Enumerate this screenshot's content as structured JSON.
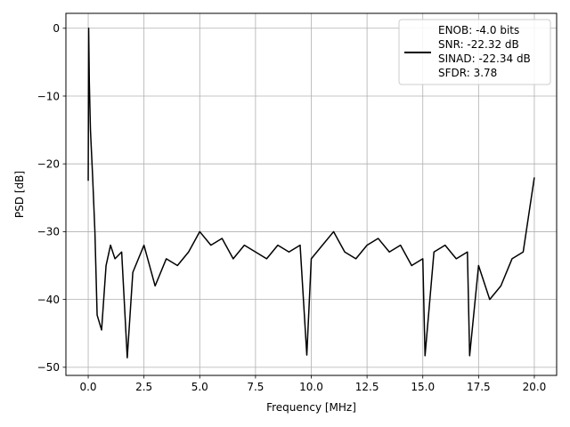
{
  "chart_data": {
    "type": "line",
    "title": "",
    "xlabel": "Frequency [MHz]",
    "ylabel": "PSD [dB]",
    "xlim": [
      -1.0,
      21.0
    ],
    "ylim": [
      -51.2,
      2.2
    ],
    "x_ticks": [
      0.0,
      2.5,
      5.0,
      7.5,
      10.0,
      12.5,
      15.0,
      17.5,
      20.0
    ],
    "x_tick_labels": [
      "0.0",
      "2.5",
      "5.0",
      "7.5",
      "10.0",
      "12.5",
      "15.0",
      "17.5",
      "20.0"
    ],
    "y_ticks": [
      0,
      -10,
      -20,
      -30,
      -40,
      -50
    ],
    "y_tick_labels": [
      "0",
      "−10",
      "−20",
      "−30",
      "−40",
      "−50"
    ],
    "grid": true,
    "legend": {
      "placement": "top-right",
      "entries": [
        "ENOB: -4.0 bits",
        "SNR: -22.32 dB",
        "SINAD: -22.34 dB",
        "SFDR: 3.78"
      ]
    },
    "series": [
      {
        "color": "#000000",
        "x": [
          0.0,
          0.02,
          0.05,
          0.1,
          0.2,
          0.3,
          0.4,
          0.6,
          0.8,
          1.0,
          1.2,
          1.5,
          1.75,
          2.0,
          2.5,
          3.0,
          3.5,
          4.0,
          4.5,
          5.0,
          5.5,
          6.0,
          6.5,
          7.0,
          7.5,
          8.0,
          8.5,
          9.0,
          9.5,
          9.8,
          10.0,
          10.5,
          11.0,
          11.5,
          12.0,
          12.5,
          13.0,
          13.5,
          14.0,
          14.5,
          15.0,
          15.1,
          15.5,
          16.0,
          16.5,
          17.0,
          17.1,
          17.5,
          18.0,
          18.5,
          19.0,
          19.5,
          20.0
        ],
        "y": [
          -22.5,
          0.0,
          -8.0,
          -15.0,
          -22.0,
          -30.0,
          -42.3,
          -44.5,
          -35.0,
          -32.0,
          -34.0,
          -33.0,
          -48.6,
          -36.0,
          -32.0,
          -38.0,
          -34.0,
          -35.0,
          -33.0,
          -30.0,
          -32.0,
          -31.0,
          -34.0,
          -32.0,
          -33.0,
          -34.0,
          -32.0,
          -33.0,
          -32.0,
          -48.2,
          -34.0,
          -32.0,
          -30.0,
          -33.0,
          -34.0,
          -32.0,
          -31.0,
          -33.0,
          -32.0,
          -35.0,
          -34.0,
          -48.3,
          -33.0,
          -32.0,
          -34.0,
          -33.0,
          -48.3,
          -35.0,
          -40.0,
          -38.0,
          -34.0,
          -33.0,
          -22.0
        ]
      }
    ]
  }
}
